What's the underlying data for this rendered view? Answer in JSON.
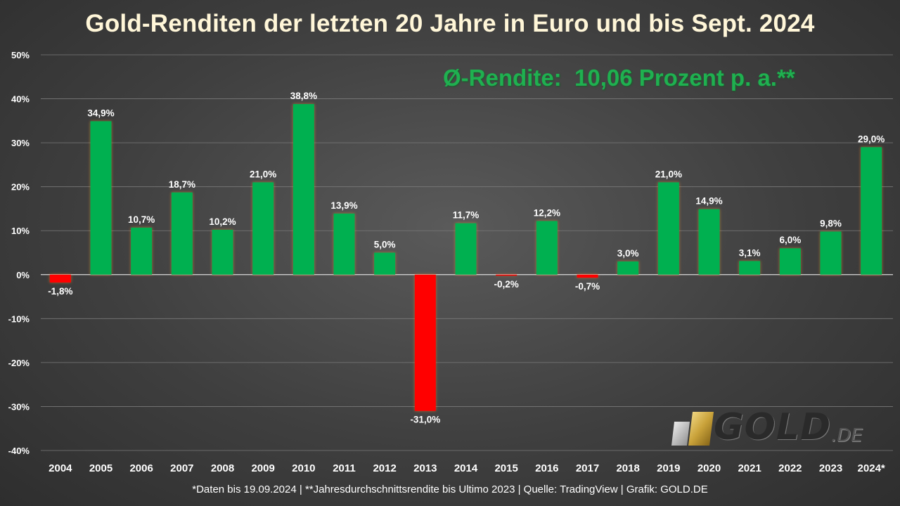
{
  "title": "Gold-Renditen der letzten 20 Jahre in Euro und bis Sept. 2024",
  "average_note": "Ø-Rendite:  10,06 Prozent p. a.**",
  "footer": "*Daten bis 19.09.2024 | **Jahresdurchschnittsrendite bis Ultimo 2023 | Quelle: TradingView | Grafik: GOLD.DE",
  "logo": {
    "word": "GOLD",
    "suffix": ".DE"
  },
  "colors": {
    "positive": "#00b050",
    "negative": "#ff0000",
    "grid": "#7a7a7a",
    "zero_line": "#d9d9d9"
  },
  "chart_data": {
    "type": "bar",
    "categories": [
      "2004",
      "2005",
      "2006",
      "2007",
      "2008",
      "2009",
      "2010",
      "2011",
      "2012",
      "2013",
      "2014",
      "2015",
      "2016",
      "2017",
      "2018",
      "2019",
      "2020",
      "2021",
      "2022",
      "2023",
      "2024*"
    ],
    "values": [
      -1.8,
      34.9,
      10.7,
      18.7,
      10.2,
      21.0,
      38.8,
      13.9,
      5.0,
      -31.0,
      11.7,
      -0.2,
      12.2,
      -0.7,
      3.0,
      21.0,
      14.9,
      3.1,
      6.0,
      9.8,
      29.0
    ],
    "value_labels": [
      "-1,8%",
      "34,9%",
      "10,7%",
      "18,7%",
      "10,2%",
      "21,0%",
      "38,8%",
      "13,9%",
      "5,0%",
      "-31,0%",
      "11,7%",
      "-0,2%",
      "12,2%",
      "-0,7%",
      "3,0%",
      "21,0%",
      "14,9%",
      "3,1%",
      "6,0%",
      "9,8%",
      "29,0%"
    ],
    "yticks": [
      50,
      40,
      30,
      20,
      10,
      0,
      -10,
      -20,
      -30,
      -40
    ],
    "ytick_labels": [
      "50%",
      "40%",
      "30%",
      "20%",
      "10%",
      "0%",
      "-10%",
      "-20%",
      "-30%",
      "-40%"
    ],
    "ylim": [
      -40,
      50
    ],
    "grid": true,
    "legend": "none"
  }
}
